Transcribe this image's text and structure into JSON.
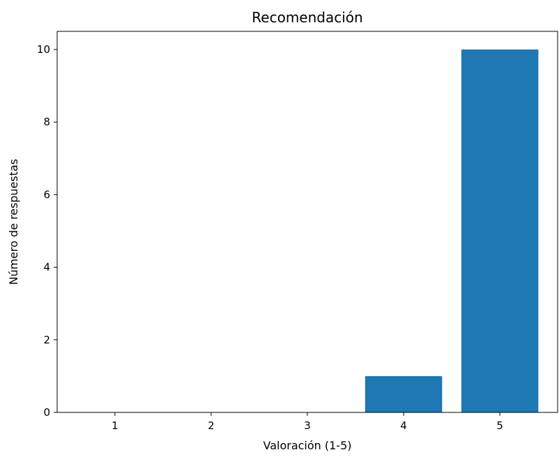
{
  "chart_data": {
    "type": "bar",
    "title": "Recomendación",
    "xlabel": "Valoración (1-5)",
    "ylabel": "Número de respuestas",
    "categories": [
      "1",
      "2",
      "3",
      "4",
      "5"
    ],
    "values": [
      0,
      0,
      0,
      1,
      10
    ],
    "xlim": [
      0.4,
      5.6
    ],
    "ylim": [
      0,
      10.5
    ],
    "yticks": [
      0,
      2,
      4,
      6,
      8,
      10
    ],
    "grid": false,
    "bar_color": "#1f77b4"
  }
}
